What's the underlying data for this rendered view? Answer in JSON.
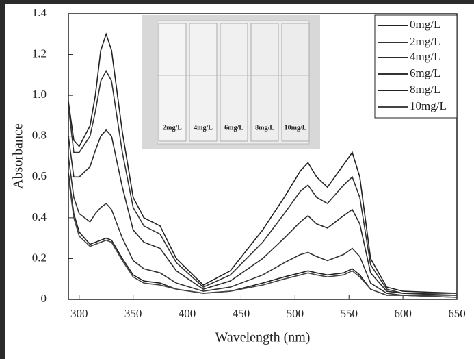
{
  "chart_data": {
    "type": "line",
    "x_label": "Wavelength (nm)",
    "y_label": "Absorbance",
    "x": [
      290,
      295,
      300,
      310,
      315,
      320,
      325,
      330,
      340,
      350,
      360,
      375,
      390,
      415,
      440,
      470,
      490,
      505,
      512,
      520,
      530,
      545,
      553,
      560,
      570,
      585,
      600,
      650
    ],
    "series": [
      {
        "name": "0mg/L",
        "color": "#222222",
        "values": [
          0.97,
          0.78,
          0.75,
          0.85,
          1.0,
          1.22,
          1.3,
          1.22,
          0.82,
          0.5,
          0.4,
          0.36,
          0.2,
          0.07,
          0.14,
          0.34,
          0.5,
          0.63,
          0.67,
          0.6,
          0.55,
          0.66,
          0.72,
          0.6,
          0.2,
          0.06,
          0.04,
          0.03
        ]
      },
      {
        "name": "2mg/L",
        "color": "#333333",
        "values": [
          0.95,
          0.72,
          0.72,
          0.8,
          0.92,
          1.07,
          1.12,
          1.07,
          0.72,
          0.45,
          0.36,
          0.32,
          0.18,
          0.06,
          0.12,
          0.28,
          0.42,
          0.53,
          0.56,
          0.5,
          0.47,
          0.56,
          0.6,
          0.5,
          0.17,
          0.05,
          0.03,
          0.03
        ]
      },
      {
        "name": "4mg/L",
        "color": "#2a2a2a",
        "values": [
          0.8,
          0.6,
          0.6,
          0.65,
          0.73,
          0.8,
          0.83,
          0.8,
          0.55,
          0.34,
          0.28,
          0.25,
          0.14,
          0.05,
          0.09,
          0.2,
          0.3,
          0.38,
          0.41,
          0.37,
          0.35,
          0.41,
          0.44,
          0.37,
          0.13,
          0.04,
          0.03,
          0.02
        ]
      },
      {
        "name": "6mg/L",
        "color": "#333333",
        "values": [
          0.7,
          0.5,
          0.42,
          0.38,
          0.42,
          0.45,
          0.47,
          0.44,
          0.3,
          0.19,
          0.15,
          0.13,
          0.08,
          0.04,
          0.06,
          0.12,
          0.18,
          0.22,
          0.23,
          0.21,
          0.19,
          0.22,
          0.25,
          0.21,
          0.08,
          0.03,
          0.02,
          0.02
        ]
      },
      {
        "name": "8mg/L",
        "color": "#222222",
        "values": [
          0.62,
          0.42,
          0.33,
          0.27,
          0.28,
          0.29,
          0.3,
          0.29,
          0.2,
          0.12,
          0.09,
          0.08,
          0.05,
          0.03,
          0.04,
          0.08,
          0.11,
          0.13,
          0.14,
          0.13,
          0.12,
          0.13,
          0.15,
          0.12,
          0.05,
          0.02,
          0.02,
          0.01
        ]
      },
      {
        "name": "10mg/L",
        "color": "#444444",
        "values": [
          0.6,
          0.4,
          0.31,
          0.26,
          0.27,
          0.28,
          0.29,
          0.28,
          0.19,
          0.11,
          0.08,
          0.07,
          0.05,
          0.03,
          0.04,
          0.07,
          0.1,
          0.12,
          0.13,
          0.12,
          0.11,
          0.12,
          0.14,
          0.11,
          0.05,
          0.02,
          0.02,
          0.01
        ]
      }
    ],
    "xlim": [
      290,
      650
    ],
    "xticks": [
      300,
      350,
      400,
      450,
      500,
      550,
      600,
      650
    ],
    "ylim": [
      0,
      1.4
    ],
    "yticks": [
      0,
      0.2,
      0.4,
      0.6,
      0.8,
      {
        "value": 1,
        "label": "1.0"
      },
      1.2,
      1.4
    ],
    "legend": "top-right",
    "inset_labels": [
      "2mg/L",
      "4mg/L",
      "6mg/L",
      "8mg/L",
      "10mg/L"
    ]
  }
}
